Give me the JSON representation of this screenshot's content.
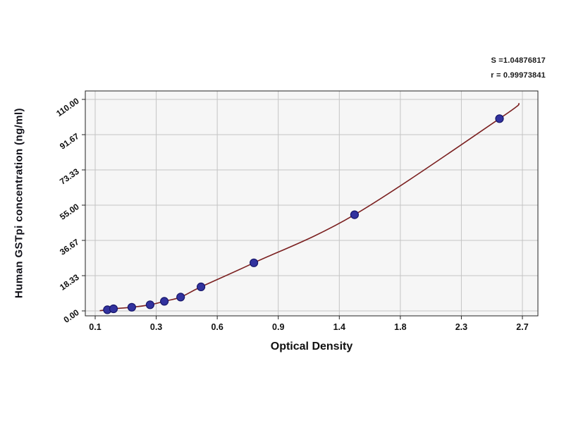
{
  "annotations": {
    "line1": "S =1.04876817",
    "line2": "r = 0.99973841"
  },
  "chart_data": {
    "type": "scatter",
    "title": "",
    "xlabel": "Optical Density",
    "ylabel": "Human  GSTpi concentration (ng/ml)",
    "x_tick_values": [
      0.1,
      0.3,
      0.6,
      0.9,
      1.4,
      1.8,
      2.3,
      2.7
    ],
    "x_tick_labels": [
      "0.1",
      "0.3",
      "0.6",
      "0.9",
      "1.4",
      "1.8",
      "2.3",
      "2.7"
    ],
    "y_tick_values": [
      0.0,
      18.33,
      36.67,
      55.0,
      73.33,
      91.67,
      110.0
    ],
    "y_tick_labels": [
      "0.00",
      "18.33",
      "36.67",
      "55.00",
      "73.33",
      "91.67",
      "110.00"
    ],
    "ylim": [
      0,
      110
    ],
    "grid": true,
    "legend": "none",
    "points": [
      {
        "x": 0.14,
        "y": 0.6
      },
      {
        "x": 0.16,
        "y": 1.1
      },
      {
        "x": 0.22,
        "y": 1.9
      },
      {
        "x": 0.28,
        "y": 3.2
      },
      {
        "x": 0.34,
        "y": 5.0
      },
      {
        "x": 0.42,
        "y": 7.2
      },
      {
        "x": 0.52,
        "y": 12.5
      },
      {
        "x": 0.78,
        "y": 25.0
      },
      {
        "x": 1.5,
        "y": 50.0
      },
      {
        "x": 2.55,
        "y": 100.0
      }
    ],
    "fit_stats": {
      "S": "1.04876817",
      "r": "0.99973841"
    },
    "fit_curve": "smooth regression curve through standard points"
  },
  "colors": {
    "plot_bg": "#f6f6f6",
    "grid": "#c4c4c4",
    "frame": "#222222",
    "curve": "#7b2020",
    "point_fill": "#32329e",
    "point_edge": "#16166a",
    "tick_text": "#111111"
  }
}
